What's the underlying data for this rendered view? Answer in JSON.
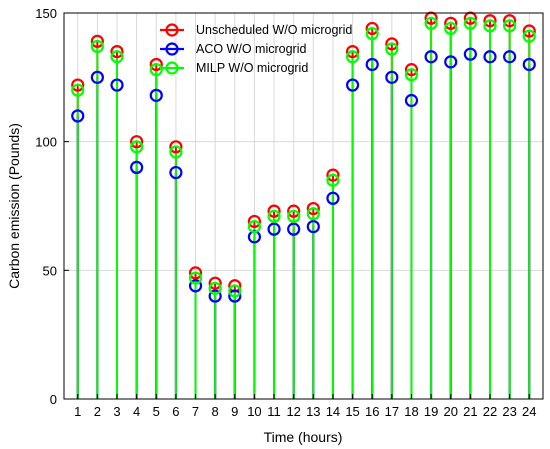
{
  "chart_data": {
    "type": "stem",
    "xlabel": "Time (hours)",
    "ylabel": "Carbon emission (Pounds)",
    "xlim": [
      0.3,
      24.7
    ],
    "ylim": [
      0,
      150
    ],
    "grid": true,
    "legend_position": "top",
    "x_ticks": [
      "1",
      "2",
      "3",
      "4",
      "5",
      "6",
      "7",
      "8",
      "9",
      "10",
      "11",
      "12",
      "13",
      "14",
      "15",
      "16",
      "17",
      "18",
      "19",
      "20",
      "21",
      "22",
      "23",
      "24"
    ],
    "y_ticks": [
      "0",
      "50",
      "100",
      "150"
    ],
    "x": [
      1,
      2,
      3,
      4,
      5,
      6,
      7,
      8,
      9,
      10,
      11,
      12,
      13,
      14,
      15,
      16,
      17,
      18,
      19,
      20,
      21,
      22,
      23,
      24
    ],
    "series": [
      {
        "name": "Unscheduled W/O microgrid",
        "color": "#ff0000",
        "values": [
          122,
          139,
          135,
          100,
          130,
          98,
          49,
          45,
          44,
          69,
          73,
          73,
          74,
          87,
          135,
          144,
          138,
          128,
          148,
          146,
          148,
          147,
          147,
          143
        ]
      },
      {
        "name": "ACO W/O microgrid",
        "color": "#0000ff",
        "values": [
          110,
          125,
          122,
          90,
          118,
          88,
          44,
          40,
          40,
          63,
          66,
          66,
          67,
          78,
          122,
          130,
          125,
          116,
          133,
          131,
          134,
          133,
          133,
          130
        ]
      },
      {
        "name": "MILP W/O microgrid",
        "color": "#00ff00",
        "values": [
          120,
          137,
          133,
          98,
          128,
          96,
          47,
          43,
          42,
          67,
          71,
          71,
          72,
          85,
          133,
          142,
          136,
          126,
          146,
          144,
          146,
          145,
          145,
          141
        ]
      }
    ]
  }
}
